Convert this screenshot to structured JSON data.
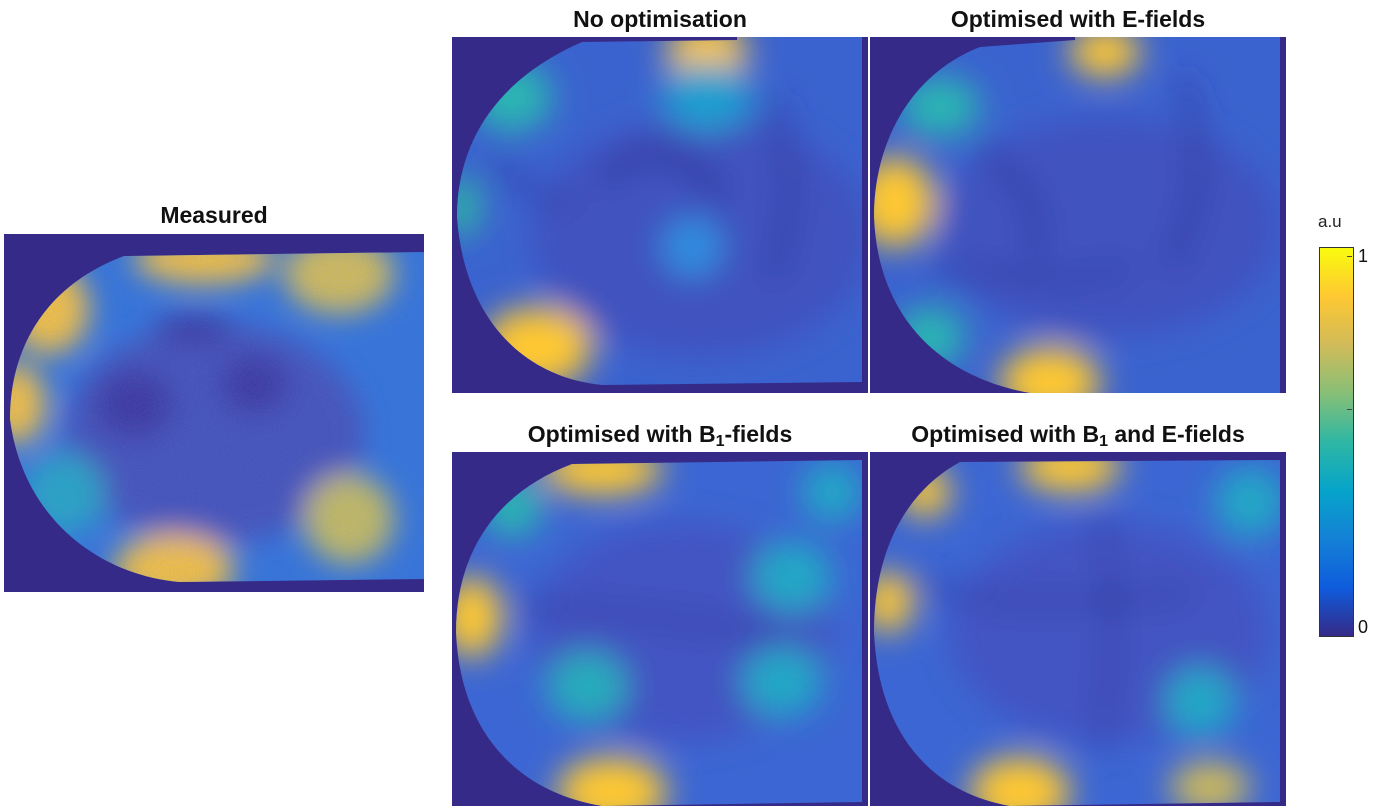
{
  "panels": {
    "measured": {
      "title": "Measured"
    },
    "no_opt": {
      "title": "No optimisation"
    },
    "opt_e": {
      "title": "Optimised with E-fields"
    },
    "opt_b1": {
      "title_pre": "Optimised with B",
      "title_sub": "1",
      "title_post": "-fields"
    },
    "opt_b1e": {
      "title_pre": "Optimised with B",
      "title_sub": "1",
      "title_post": " and E-fields"
    }
  },
  "colorbar": {
    "unit": "a.u",
    "max_label": "1",
    "min_label": "0",
    "colormap": "parula",
    "colors": [
      "#352a87",
      "#0f5cdd",
      "#1481d6",
      "#06a4ca",
      "#2eb7a4",
      "#87bf77",
      "#d1bb59",
      "#fec832",
      "#f9fb0e"
    ]
  }
}
